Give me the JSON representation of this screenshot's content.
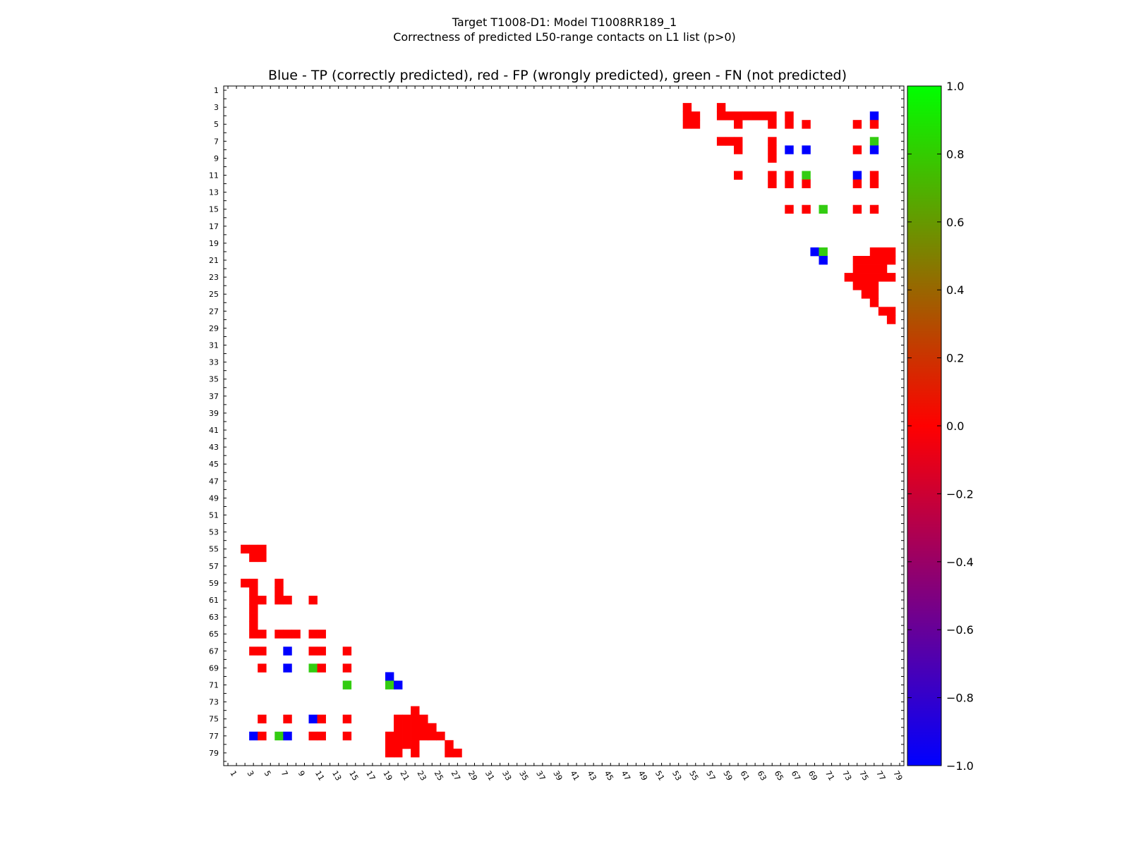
{
  "figure": {
    "title_line1": "Target T1008-D1: Model T1008RR189_1",
    "title_line2": "Correctness of predicted L50-range contacts on L1 list (p>0)"
  },
  "chart_data": {
    "type": "heatmap",
    "title": "Blue - TP (correctly predicted), red - FP (wrongly predicted), green - FN (not predicted)",
    "xlabel": "",
    "ylabel": "",
    "matrix_size": 80,
    "xlim": [
      1,
      80
    ],
    "ylim": [
      1,
      80
    ],
    "x_tick_labels": [
      "1",
      "3",
      "5",
      "7",
      "9",
      "11",
      "13",
      "15",
      "17",
      "19",
      "21",
      "23",
      "25",
      "27",
      "29",
      "31",
      "33",
      "35",
      "37",
      "39",
      "41",
      "43",
      "45",
      "47",
      "49",
      "51",
      "53",
      "55",
      "57",
      "59",
      "61",
      "63",
      "65",
      "67",
      "69",
      "71",
      "73",
      "75",
      "77",
      "79"
    ],
    "y_tick_labels": [
      "1",
      "3",
      "5",
      "7",
      "9",
      "11",
      "13",
      "15",
      "17",
      "19",
      "21",
      "23",
      "25",
      "27",
      "29",
      "31",
      "33",
      "35",
      "37",
      "39",
      "41",
      "43",
      "45",
      "47",
      "49",
      "51",
      "53",
      "55",
      "57",
      "59",
      "61",
      "63",
      "65",
      "67",
      "69",
      "71",
      "73",
      "75",
      "77",
      "79"
    ],
    "colors": {
      "TP": "#0000ff",
      "FP": "#ff0000",
      "FN": "#33cc11"
    },
    "values_legend": {
      "TP": -1.0,
      "FP": 0.0,
      "FN": 1.0
    },
    "colorbar": {
      "ticks": [
        "1.0",
        "0.8",
        "0.6",
        "0.4",
        "0.2",
        "0.0",
        "−0.2",
        "−0.4",
        "−0.6",
        "−0.8",
        "−1.0"
      ],
      "range": [
        -1.0,
        1.0
      ],
      "colors_top_to_bottom": [
        "#00ff00",
        "#ff0000",
        "#0000ff"
      ]
    },
    "contacts": [
      [
        3,
        55,
        "FP"
      ],
      [
        4,
        55,
        "FP"
      ],
      [
        4,
        56,
        "FP"
      ],
      [
        5,
        55,
        "FP"
      ],
      [
        5,
        56,
        "FP"
      ],
      [
        3,
        59,
        "FP"
      ],
      [
        4,
        59,
        "FP"
      ],
      [
        4,
        60,
        "FP"
      ],
      [
        4,
        61,
        "FP"
      ],
      [
        4,
        62,
        "FP"
      ],
      [
        4,
        63,
        "FP"
      ],
      [
        4,
        64,
        "FP"
      ],
      [
        4,
        65,
        "FP"
      ],
      [
        4,
        67,
        "FP"
      ],
      [
        4,
        77,
        "TP"
      ],
      [
        5,
        61,
        "FP"
      ],
      [
        5,
        65,
        "FP"
      ],
      [
        5,
        67,
        "FP"
      ],
      [
        5,
        69,
        "FP"
      ],
      [
        5,
        75,
        "FP"
      ],
      [
        5,
        77,
        "FP"
      ],
      [
        7,
        59,
        "FP"
      ],
      [
        7,
        60,
        "FP"
      ],
      [
        7,
        61,
        "FP"
      ],
      [
        7,
        65,
        "FP"
      ],
      [
        7,
        77,
        "FN"
      ],
      [
        8,
        61,
        "FP"
      ],
      [
        8,
        65,
        "FP"
      ],
      [
        8,
        67,
        "TP"
      ],
      [
        8,
        69,
        "TP"
      ],
      [
        8,
        75,
        "FP"
      ],
      [
        8,
        77,
        "TP"
      ],
      [
        9,
        65,
        "FP"
      ],
      [
        11,
        61,
        "FP"
      ],
      [
        11,
        65,
        "FP"
      ],
      [
        11,
        67,
        "FP"
      ],
      [
        11,
        69,
        "FN"
      ],
      [
        11,
        75,
        "TP"
      ],
      [
        11,
        77,
        "FP"
      ],
      [
        12,
        65,
        "FP"
      ],
      [
        12,
        67,
        "FP"
      ],
      [
        12,
        69,
        "FP"
      ],
      [
        12,
        75,
        "FP"
      ],
      [
        12,
        77,
        "FP"
      ],
      [
        15,
        67,
        "FP"
      ],
      [
        15,
        69,
        "FP"
      ],
      [
        15,
        71,
        "FN"
      ],
      [
        15,
        75,
        "FP"
      ],
      [
        15,
        77,
        "FP"
      ],
      [
        20,
        70,
        "TP"
      ],
      [
        20,
        71,
        "FN"
      ],
      [
        20,
        77,
        "FP"
      ],
      [
        20,
        78,
        "FP"
      ],
      [
        20,
        79,
        "FP"
      ],
      [
        21,
        71,
        "TP"
      ],
      [
        21,
        75,
        "FP"
      ],
      [
        21,
        76,
        "FP"
      ],
      [
        21,
        77,
        "FP"
      ],
      [
        21,
        78,
        "FP"
      ],
      [
        21,
        79,
        "FP"
      ],
      [
        22,
        75,
        "FP"
      ],
      [
        22,
        76,
        "FP"
      ],
      [
        22,
        77,
        "FP"
      ],
      [
        22,
        78,
        "FP"
      ],
      [
        23,
        74,
        "FP"
      ],
      [
        23,
        75,
        "FP"
      ],
      [
        23,
        76,
        "FP"
      ],
      [
        23,
        77,
        "FP"
      ],
      [
        23,
        78,
        "FP"
      ],
      [
        23,
        79,
        "FP"
      ],
      [
        24,
        75,
        "FP"
      ],
      [
        24,
        76,
        "FP"
      ],
      [
        24,
        77,
        "FP"
      ],
      [
        25,
        76,
        "FP"
      ],
      [
        25,
        77,
        "FP"
      ],
      [
        26,
        77,
        "FP"
      ],
      [
        27,
        78,
        "FP"
      ],
      [
        27,
        79,
        "FP"
      ],
      [
        28,
        79,
        "FP"
      ]
    ]
  }
}
